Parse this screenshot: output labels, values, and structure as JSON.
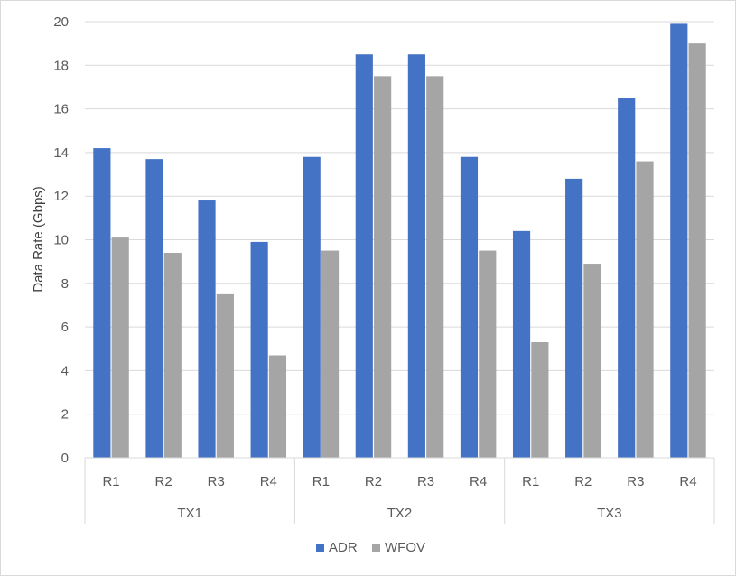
{
  "chart_data": {
    "type": "bar",
    "ylabel": "Data Rate (Gbps)",
    "ylim": [
      0,
      20
    ],
    "yticks": [
      0,
      2,
      4,
      6,
      8,
      10,
      12,
      14,
      16,
      18,
      20
    ],
    "grid": true,
    "legend_position": "bottom",
    "groups": [
      {
        "label": "TX1",
        "categories": [
          "R1",
          "R2",
          "R3",
          "R4"
        ]
      },
      {
        "label": "TX2",
        "categories": [
          "R1",
          "R2",
          "R3",
          "R4"
        ]
      },
      {
        "label": "TX3",
        "categories": [
          "R1",
          "R2",
          "R3",
          "R4"
        ]
      }
    ],
    "series": [
      {
        "name": "ADR",
        "color": "#4472c4",
        "values": [
          14.2,
          13.7,
          11.8,
          9.9,
          13.8,
          18.5,
          18.5,
          13.8,
          10.4,
          12.8,
          16.5,
          19.9
        ]
      },
      {
        "name": "WFOV",
        "color": "#a5a5a5",
        "values": [
          10.1,
          9.4,
          7.5,
          4.7,
          9.5,
          17.5,
          17.5,
          9.5,
          5.3,
          8.9,
          13.6,
          19.0
        ]
      }
    ]
  }
}
